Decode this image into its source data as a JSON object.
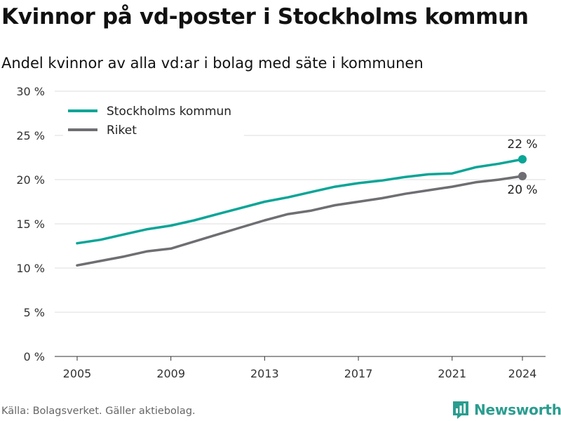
{
  "title": "Kvinnor på vd-poster i Stockholms kommun",
  "subtitle": "Andel kvinnor av alla vd:ar i bolag med säte i kommunen",
  "source": "Källa: Bolagsverket. Gäller aktiebolag.",
  "brand": "Newsworthy",
  "colors": {
    "teal": "#0aa597",
    "gray": "#6e6e73",
    "grid": "#dddddd",
    "brand": "#2a9d8f"
  },
  "chart_data": {
    "type": "line",
    "x": [
      2005,
      2006,
      2007,
      2008,
      2009,
      2010,
      2011,
      2012,
      2013,
      2014,
      2015,
      2016,
      2017,
      2018,
      2019,
      2020,
      2021,
      2022,
      2023,
      2024
    ],
    "series": [
      {
        "name": "Stockholms kommun",
        "color": "#0aa597",
        "values": [
          12.8,
          13.2,
          13.8,
          14.4,
          14.8,
          15.4,
          16.1,
          16.8,
          17.5,
          18.0,
          18.6,
          19.2,
          19.6,
          19.9,
          20.3,
          20.6,
          20.7,
          21.4,
          21.8,
          22.3
        ],
        "end_label": "22 %"
      },
      {
        "name": "Riket",
        "color": "#6e6e73",
        "values": [
          10.3,
          10.8,
          11.3,
          11.9,
          12.2,
          13.0,
          13.8,
          14.6,
          15.4,
          16.1,
          16.5,
          17.1,
          17.5,
          17.9,
          18.4,
          18.8,
          19.2,
          19.7,
          20.0,
          20.4
        ],
        "end_label": "20 %"
      }
    ],
    "xticks": [
      2005,
      2009,
      2013,
      2017,
      2021,
      2024
    ],
    "yticks": [
      0,
      5,
      10,
      15,
      20,
      25,
      30
    ],
    "ytick_labels": [
      "0 %",
      "5 %",
      "10 %",
      "15 %",
      "20 %",
      "25 %",
      "30 %"
    ],
    "ylim": [
      0,
      30
    ],
    "xlim": [
      2005,
      2024
    ],
    "grid": "horizontal",
    "legend": "top-left"
  }
}
